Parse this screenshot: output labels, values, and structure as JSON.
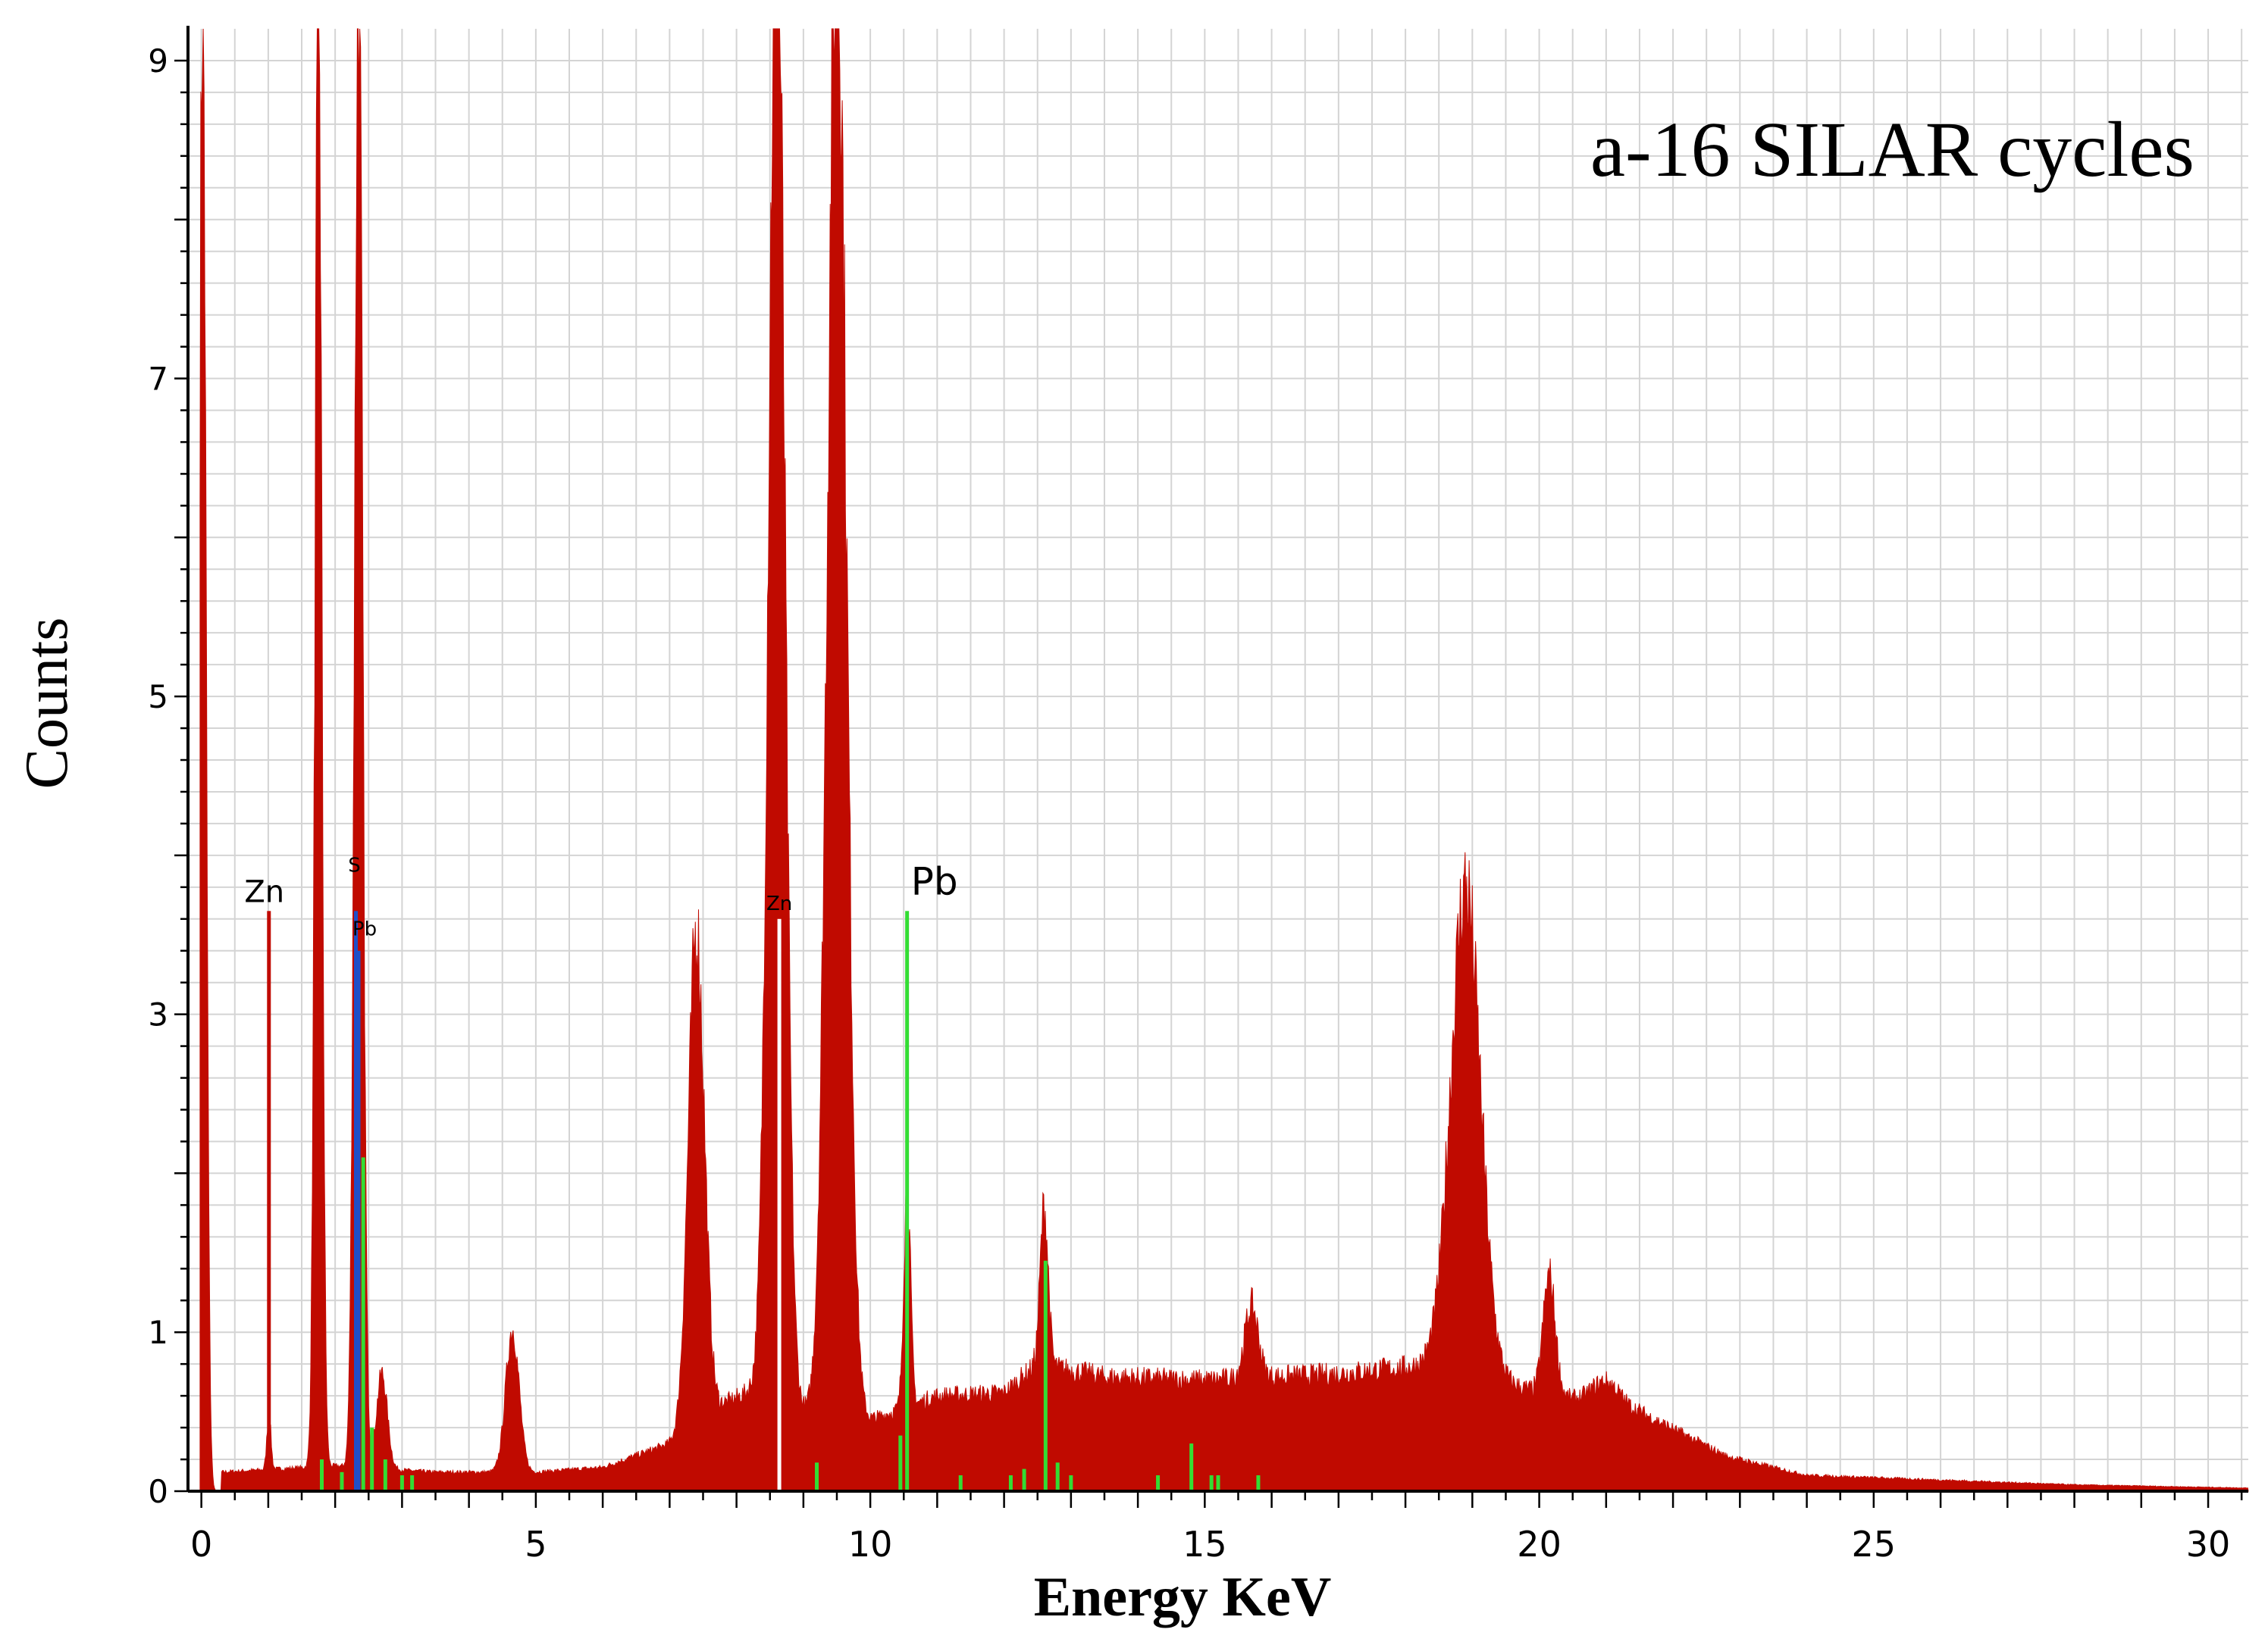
{
  "chart_data": {
    "type": "area",
    "title": "a-16 SILAR cycles",
    "xlabel": "Energy KeV",
    "ylabel": "Counts",
    "xlim": [
      -0.2,
      30.6
    ],
    "ylim": [
      0,
      9.2
    ],
    "grid": true,
    "x_ticks": [
      0,
      5,
      10,
      15,
      20,
      25,
      30
    ],
    "x_tick_labels": [
      "0",
      "5",
      "10",
      "15",
      "20",
      "25",
      "30"
    ],
    "y_ticks": [
      0,
      1,
      3,
      5,
      7,
      9
    ],
    "y_tick_labels": [
      "0",
      "1",
      "3",
      "5",
      "7",
      "9"
    ],
    "colors": {
      "spectrum": "#c00a00",
      "grid": "#d4d4d4",
      "axis": "#000000",
      "marker_zn": "#ffffff",
      "marker_s": "#1f4fc8",
      "marker_pb": "#33dd33"
    },
    "background": {
      "start": 0.3,
      "end": 30.6,
      "x": [
        0.3,
        2.0,
        3.5,
        5.0,
        6.0,
        7.0,
        7.8,
        8.3,
        9.0,
        10.0,
        11.0,
        12.0,
        12.5,
        13.5,
        15.0,
        17.0,
        18.5,
        20.0,
        21.5,
        22.8,
        24.0,
        26.0,
        28.0,
        30.6
      ],
      "y": [
        0.12,
        0.16,
        0.12,
        0.12,
        0.15,
        0.3,
        0.55,
        0.65,
        0.5,
        0.45,
        0.6,
        0.62,
        0.8,
        0.72,
        0.7,
        0.74,
        0.8,
        0.62,
        0.5,
        0.22,
        0.1,
        0.07,
        0.04,
        0.02
      ]
    },
    "peaks": [
      {
        "center": 0.02,
        "height": 9.5,
        "sigma": 0.05
      },
      {
        "center": 1.01,
        "height": 0.35,
        "sigma": 0.03
      },
      {
        "center": 1.75,
        "height": 9.5,
        "sigma": 0.05
      },
      {
        "center": 2.35,
        "height": 9.5,
        "sigma": 0.06
      },
      {
        "center": 2.7,
        "height": 0.6,
        "sigma": 0.08
      },
      {
        "center": 4.65,
        "height": 0.9,
        "sigma": 0.1
      },
      {
        "center": 7.4,
        "height": 3.1,
        "sigma": 0.12
      },
      {
        "center": 8.6,
        "height": 9.5,
        "sigma": 0.12
      },
      {
        "center": 9.5,
        "height": 9.5,
        "sigma": 0.14
      },
      {
        "center": 10.55,
        "height": 1.4,
        "sigma": 0.05
      },
      {
        "center": 12.6,
        "height": 1.0,
        "sigma": 0.06
      },
      {
        "center": 15.7,
        "height": 0.45,
        "sigma": 0.1
      },
      {
        "center": 18.9,
        "height": 3.05,
        "sigma": 0.22
      },
      {
        "center": 20.15,
        "height": 0.75,
        "sigma": 0.09
      },
      {
        "center": 21.0,
        "height": 0.15,
        "sigma": 0.2
      }
    ],
    "element_markers": [
      {
        "element": "Zn",
        "energy": 1.01,
        "height": 3.65,
        "color": "#c00a00",
        "label": "Zn",
        "label_size": "small"
      },
      {
        "element": "S",
        "energy": 2.31,
        "height": 3.65,
        "color": "#1f4fc8",
        "label": "S",
        "label_size": "tiny"
      },
      {
        "element": "Pb",
        "energy": 2.35,
        "height": 3.4,
        "color": "#1f4fc8",
        "label": "Pb",
        "label_size": "tiny"
      },
      {
        "element": "Zn",
        "energy": 8.64,
        "height": 3.6,
        "color": "#ffffff",
        "label": "Zn",
        "label_size": "tiny"
      },
      {
        "element": "Pb",
        "energy": 10.55,
        "height": 3.65,
        "color": "#33dd33",
        "label": "Pb",
        "label_size": "large"
      }
    ],
    "pb_minor_lines": [
      {
        "energy": 1.8,
        "height": 0.2
      },
      {
        "energy": 2.1,
        "height": 0.12
      },
      {
        "energy": 2.42,
        "height": 2.1
      },
      {
        "energy": 2.55,
        "height": 0.4
      },
      {
        "energy": 2.75,
        "height": 0.2
      },
      {
        "energy": 3.0,
        "height": 0.1
      },
      {
        "energy": 3.15,
        "height": 0.1
      },
      {
        "energy": 9.2,
        "height": 0.18
      },
      {
        "energy": 10.45,
        "height": 0.35
      },
      {
        "energy": 11.35,
        "height": 0.1
      },
      {
        "energy": 12.1,
        "height": 0.1
      },
      {
        "energy": 12.3,
        "height": 0.14
      },
      {
        "energy": 12.62,
        "height": 1.45
      },
      {
        "energy": 12.8,
        "height": 0.18
      },
      {
        "energy": 13.0,
        "height": 0.1
      },
      {
        "energy": 14.3,
        "height": 0.1
      },
      {
        "energy": 14.8,
        "height": 0.3
      },
      {
        "energy": 15.1,
        "height": 0.1
      },
      {
        "energy": 15.2,
        "height": 0.1
      },
      {
        "energy": 15.8,
        "height": 0.1
      }
    ]
  }
}
